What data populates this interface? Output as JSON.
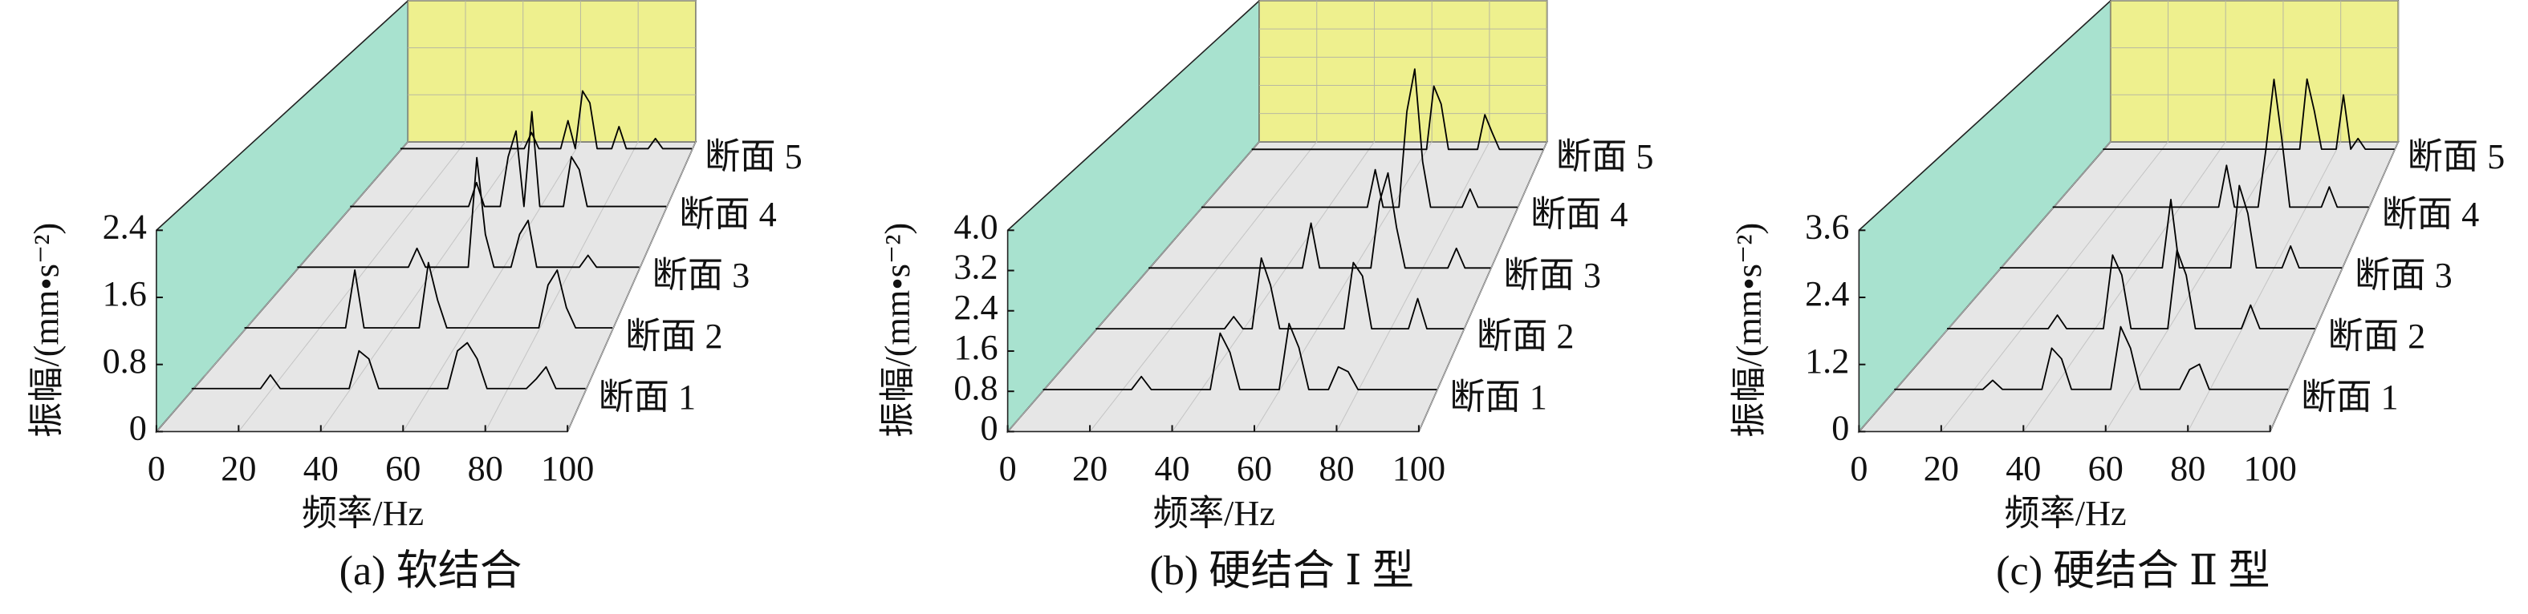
{
  "chart_data": [
    {
      "type": "waterfall3d",
      "title": "(a) 软结合",
      "xlabel": "频率/Hz",
      "ylabel": "振幅/(mm•s⁻²)",
      "x": [
        0,
        2.5,
        5,
        7.5,
        10,
        12.5,
        15,
        17.5,
        20,
        22.5,
        25,
        27.5,
        30,
        32.5,
        35,
        37.5,
        40,
        42.5,
        45,
        47.5,
        50,
        52.5,
        55,
        57.5,
        60,
        62.5,
        65,
        67.5,
        70,
        72.5,
        75,
        77.5,
        80,
        82.5,
        85,
        87.5,
        90,
        92.5,
        95,
        97.5,
        100
      ],
      "xlim": [
        0,
        100
      ],
      "xticks": [
        0,
        20,
        40,
        60,
        80,
        100
      ],
      "ylim": [
        0,
        2.4
      ],
      "yticks": [
        0,
        0.8,
        1.6,
        2.4
      ],
      "grid": true,
      "series": [
        {
          "name": "断面 1",
          "color": "#000000",
          "values": [
            0.03,
            0.03,
            0.03,
            0.03,
            0.03,
            0.03,
            0.03,
            0.03,
            0.2,
            0.03,
            0.03,
            0.03,
            0.03,
            0.03,
            0.03,
            0.03,
            0.03,
            0.5,
            0.4,
            0.03,
            0.03,
            0.03,
            0.03,
            0.03,
            0.03,
            0.03,
            0.03,
            0.5,
            0.6,
            0.4,
            0.03,
            0.03,
            0.03,
            0.03,
            0.03,
            0.15,
            0.3,
            0.03,
            0.03,
            0.03,
            0.03
          ]
        },
        {
          "name": "断面 2",
          "color": "#000000",
          "values": [
            0.03,
            0.03,
            0.03,
            0.03,
            0.03,
            0.03,
            0.03,
            0.03,
            0.03,
            0.03,
            0.03,
            0.03,
            0.8,
            0.03,
            0.03,
            0.03,
            0.03,
            0.03,
            0.03,
            0.03,
            0.9,
            0.4,
            0.03,
            0.03,
            0.03,
            0.03,
            0.03,
            0.03,
            0.03,
            0.03,
            0.03,
            0.03,
            0.03,
            0.6,
            0.8,
            0.3,
            0.03,
            0.03,
            0.03,
            0.03,
            0.03
          ]
        },
        {
          "name": "断面 3",
          "color": "#000000",
          "values": [
            0.03,
            0.03,
            0.03,
            0.03,
            0.03,
            0.03,
            0.03,
            0.03,
            0.03,
            0.03,
            0.03,
            0.03,
            0.03,
            0.03,
            0.3,
            0.03,
            0.03,
            0.03,
            0.03,
            0.03,
            0.03,
            1.6,
            0.5,
            0.03,
            0.03,
            0.03,
            0.5,
            0.7,
            0.03,
            0.03,
            0.03,
            0.03,
            0.03,
            0.03,
            0.2,
            0.03,
            0.03,
            0.03,
            0.03,
            0.03,
            0.03
          ]
        },
        {
          "name": "断面 4",
          "color": "#000000",
          "values": [
            0.03,
            0.03,
            0.03,
            0.03,
            0.03,
            0.03,
            0.03,
            0.03,
            0.03,
            0.03,
            0.03,
            0.03,
            0.03,
            0.03,
            0.03,
            0.03,
            0.4,
            0.03,
            0.03,
            0.03,
            0.8,
            1.2,
            0.03,
            1.5,
            0.03,
            0.03,
            0.03,
            0.03,
            0.8,
            0.6,
            0.03,
            0.03,
            0.03,
            0.03,
            0.03,
            0.03,
            0.03,
            0.03,
            0.03,
            0.03,
            0.03
          ]
        },
        {
          "name": "断面 5",
          "color": "#000000",
          "values": [
            0.03,
            0.03,
            0.03,
            0.03,
            0.03,
            0.03,
            0.03,
            0.03,
            0.03,
            0.03,
            0.03,
            0.03,
            0.03,
            0.03,
            0.03,
            0.03,
            0.03,
            0.03,
            0.3,
            0.03,
            0.03,
            0.03,
            0.03,
            0.5,
            0.03,
            1.0,
            0.8,
            0.03,
            0.03,
            0.03,
            0.4,
            0.03,
            0.03,
            0.03,
            0.03,
            0.2,
            0.03,
            0.03,
            0.03,
            0.03,
            0.03
          ]
        }
      ]
    },
    {
      "type": "waterfall3d",
      "title": "(b) 硬结合 Ⅰ 型",
      "xlabel": "频率/Hz",
      "ylabel": "振幅/(mm•s⁻²)",
      "x": [
        0,
        2.5,
        5,
        7.5,
        10,
        12.5,
        15,
        17.5,
        20,
        22.5,
        25,
        27.5,
        30,
        32.5,
        35,
        37.5,
        40,
        42.5,
        45,
        47.5,
        50,
        52.5,
        55,
        57.5,
        60,
        62.5,
        65,
        67.5,
        70,
        72.5,
        75,
        77.5,
        80,
        82.5,
        85,
        87.5,
        90,
        92.5,
        95,
        97.5,
        100
      ],
      "xlim": [
        0,
        100
      ],
      "xticks": [
        0,
        20,
        40,
        60,
        80,
        100
      ],
      "ylim": [
        0,
        4
      ],
      "yticks": [
        0,
        0.8,
        1.6,
        2.4,
        3.2,
        {
          "value": 4,
          "label": "4.0"
        }
      ],
      "grid": true,
      "series": [
        {
          "name": "断面 1",
          "color": "#000000",
          "values": [
            0.03,
            0.03,
            0.03,
            0.03,
            0.03,
            0.03,
            0.03,
            0.03,
            0.03,
            0.03,
            0.3,
            0.03,
            0.03,
            0.03,
            0.03,
            0.03,
            0.03,
            0.03,
            1.2,
            0.8,
            0.03,
            0.03,
            0.03,
            0.03,
            0.03,
            1.4,
            0.9,
            0.03,
            0.03,
            0.03,
            0.5,
            0.4,
            0.03,
            0.03,
            0.03,
            0.03,
            0.03,
            0.03,
            0.03,
            0.03,
            0.03
          ]
        },
        {
          "name": "断面 2",
          "color": "#000000",
          "values": [
            0.03,
            0.03,
            0.03,
            0.03,
            0.03,
            0.03,
            0.03,
            0.03,
            0.03,
            0.03,
            0.03,
            0.03,
            0.03,
            0.03,
            0.03,
            0.3,
            0.03,
            0.03,
            1.6,
            1.0,
            0.03,
            0.03,
            0.03,
            0.03,
            0.03,
            0.03,
            0.03,
            0.03,
            1.5,
            1.2,
            0.03,
            0.03,
            0.03,
            0.03,
            0.03,
            0.7,
            0.03,
            0.03,
            0.03,
            0.03,
            0.03
          ]
        },
        {
          "name": "断面 3",
          "color": "#000000",
          "values": [
            0.03,
            0.03,
            0.03,
            0.03,
            0.03,
            0.03,
            0.03,
            0.03,
            0.03,
            0.03,
            0.03,
            0.03,
            0.03,
            0.03,
            0.03,
            0.03,
            0.03,
            0.03,
            0.03,
            1.1,
            0.03,
            0.03,
            0.03,
            0.03,
            0.03,
            0.03,
            0.03,
            1.6,
            2.3,
            1.0,
            0.03,
            0.03,
            0.03,
            0.03,
            0.03,
            0.03,
            0.5,
            0.03,
            0.03,
            0.03,
            0.03
          ]
        },
        {
          "name": "断面 4",
          "color": "#000000",
          "values": [
            0.03,
            0.03,
            0.03,
            0.03,
            0.03,
            0.03,
            0.03,
            0.03,
            0.03,
            0.03,
            0.03,
            0.03,
            0.03,
            0.03,
            0.03,
            0.03,
            0.03,
            0.03,
            0.03,
            0.03,
            0.03,
            0.03,
            1.0,
            0.03,
            0.03,
            0.03,
            2.5,
            3.6,
            1.2,
            0.03,
            0.03,
            0.03,
            0.03,
            0.03,
            0.5,
            0.03,
            0.03,
            0.03,
            0.03,
            0.03,
            0.03
          ]
        },
        {
          "name": "断面 5",
          "color": "#000000",
          "values": [
            0.03,
            0.03,
            0.03,
            0.03,
            0.03,
            0.03,
            0.03,
            0.03,
            0.03,
            0.03,
            0.03,
            0.03,
            0.03,
            0.03,
            0.03,
            0.03,
            0.03,
            0.03,
            0.03,
            0.03,
            0.03,
            0.03,
            0.03,
            0.03,
            0.03,
            1.8,
            1.3,
            0.03,
            0.03,
            0.03,
            0.03,
            0.03,
            1.0,
            0.5,
            0.03,
            0.03,
            0.03,
            0.03,
            0.03,
            0.03,
            0.03
          ]
        }
      ]
    },
    {
      "type": "waterfall3d",
      "title": "(c) 硬结合 Ⅱ 型",
      "xlabel": "频率/Hz",
      "ylabel": "振幅/(mm•s⁻²)",
      "x": [
        0,
        2.5,
        5,
        7.5,
        10,
        12.5,
        15,
        17.5,
        20,
        22.5,
        25,
        27.5,
        30,
        32.5,
        35,
        37.5,
        40,
        42.5,
        45,
        47.5,
        50,
        52.5,
        55,
        57.5,
        60,
        62.5,
        65,
        67.5,
        70,
        72.5,
        75,
        77.5,
        80,
        82.5,
        85,
        87.5,
        90,
        92.5,
        95,
        97.5,
        100
      ],
      "xlim": [
        0,
        100
      ],
      "xticks": [
        0,
        20,
        40,
        60,
        80,
        100
      ],
      "ylim": [
        0,
        3.6
      ],
      "yticks": [
        0,
        1.2,
        2.4,
        3.6
      ],
      "grid": true,
      "series": [
        {
          "name": "断面 1",
          "color": "#000000",
          "values": [
            0.03,
            0.03,
            0.03,
            0.03,
            0.03,
            0.03,
            0.03,
            0.03,
            0.03,
            0.03,
            0.2,
            0.03,
            0.03,
            0.03,
            0.03,
            0.03,
            0.8,
            0.6,
            0.03,
            0.03,
            0.03,
            0.03,
            0.03,
            1.2,
            0.8,
            0.03,
            0.03,
            0.03,
            0.03,
            0.03,
            0.4,
            0.5,
            0.03,
            0.03,
            0.03,
            0.03,
            0.03,
            0.03,
            0.03,
            0.03,
            0.03
          ]
        },
        {
          "name": "断面 2",
          "color": "#000000",
          "values": [
            0.03,
            0.03,
            0.03,
            0.03,
            0.03,
            0.03,
            0.03,
            0.03,
            0.03,
            0.03,
            0.03,
            0.03,
            0.3,
            0.03,
            0.03,
            0.03,
            0.03,
            0.03,
            1.5,
            1.1,
            0.03,
            0.03,
            0.03,
            0.03,
            0.03,
            1.6,
            1.1,
            0.03,
            0.03,
            0.03,
            0.03,
            0.03,
            0.03,
            0.5,
            0.03,
            0.03,
            0.03,
            0.03,
            0.03,
            0.03,
            0.03
          ]
        },
        {
          "name": "断面 3",
          "color": "#000000",
          "values": [
            0.03,
            0.03,
            0.03,
            0.03,
            0.03,
            0.03,
            0.03,
            0.03,
            0.03,
            0.03,
            0.03,
            0.03,
            0.03,
            0.03,
            0.03,
            0.03,
            0.03,
            0.03,
            0.03,
            0.03,
            1.5,
            0.03,
            0.03,
            0.03,
            0.03,
            0.03,
            0.03,
            0.03,
            1.8,
            1.2,
            0.03,
            0.03,
            0.03,
            0.03,
            0.5,
            0.03,
            0.03,
            0.03,
            0.03,
            0.03,
            0.03
          ]
        },
        {
          "name": "断面 4",
          "color": "#000000",
          "values": [
            0.03,
            0.03,
            0.03,
            0.03,
            0.03,
            0.03,
            0.03,
            0.03,
            0.03,
            0.03,
            0.03,
            0.03,
            0.03,
            0.03,
            0.03,
            0.03,
            0.03,
            0.03,
            0.03,
            0.03,
            0.03,
            0.03,
            1.0,
            0.03,
            0.03,
            0.03,
            0.03,
            1.4,
            3.0,
            1.6,
            0.03,
            0.03,
            0.03,
            0.03,
            0.03,
            0.5,
            0.03,
            0.03,
            0.03,
            0.03,
            0.03
          ]
        },
        {
          "name": "断面 5",
          "color": "#000000",
          "values": [
            0.03,
            0.03,
            0.03,
            0.03,
            0.03,
            0.03,
            0.03,
            0.03,
            0.03,
            0.03,
            0.03,
            0.03,
            0.03,
            0.03,
            0.03,
            0.03,
            0.03,
            0.03,
            0.03,
            0.03,
            0.03,
            0.03,
            0.03,
            0.03,
            0.03,
            0.03,
            0.03,
            0.03,
            1.8,
            1.0,
            0.03,
            0.03,
            0.03,
            1.4,
            0.03,
            0.3,
            0.03,
            0.03,
            0.03,
            0.03,
            0.03
          ]
        }
      ]
    }
  ]
}
